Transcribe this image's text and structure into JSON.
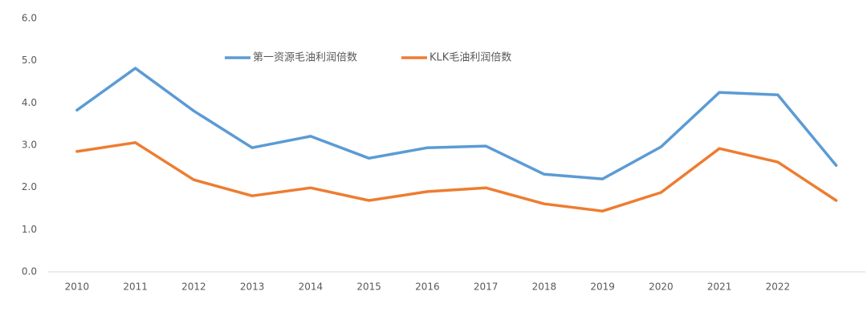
{
  "chart_data": {
    "type": "line",
    "categories": [
      "2010",
      "2011",
      "2012",
      "2013",
      "2014",
      "2015",
      "2016",
      "2017",
      "2018",
      "2019",
      "2020",
      "2021",
      "2022",
      null
    ],
    "series": [
      {
        "name": "第一资源毛油利润倍数",
        "color": "#5b9bd5",
        "values": [
          3.83,
          4.82,
          3.81,
          2.94,
          3.21,
          2.69,
          2.94,
          2.98,
          2.31,
          2.2,
          2.96,
          4.25,
          4.19,
          2.52
        ]
      },
      {
        "name": "KLK毛油利润倍数",
        "color": "#ed7d31",
        "values": [
          2.85,
          3.06,
          2.18,
          1.8,
          1.99,
          1.69,
          1.9,
          1.99,
          1.61,
          1.44,
          1.88,
          2.92,
          2.6,
          1.69
        ]
      }
    ],
    "ylim": [
      0,
      6
    ],
    "yticks": [
      {
        "value": 0,
        "label": "0.0"
      },
      {
        "value": 1,
        "label": "1.0"
      },
      {
        "value": 2,
        "label": "2.0"
      },
      {
        "value": 3,
        "label": "3.0"
      },
      {
        "value": 4,
        "label": "4.0"
      },
      {
        "value": 5,
        "label": "5.0"
      },
      {
        "value": 6,
        "label": "6.0"
      }
    ],
    "grid": false,
    "legend": "top"
  }
}
